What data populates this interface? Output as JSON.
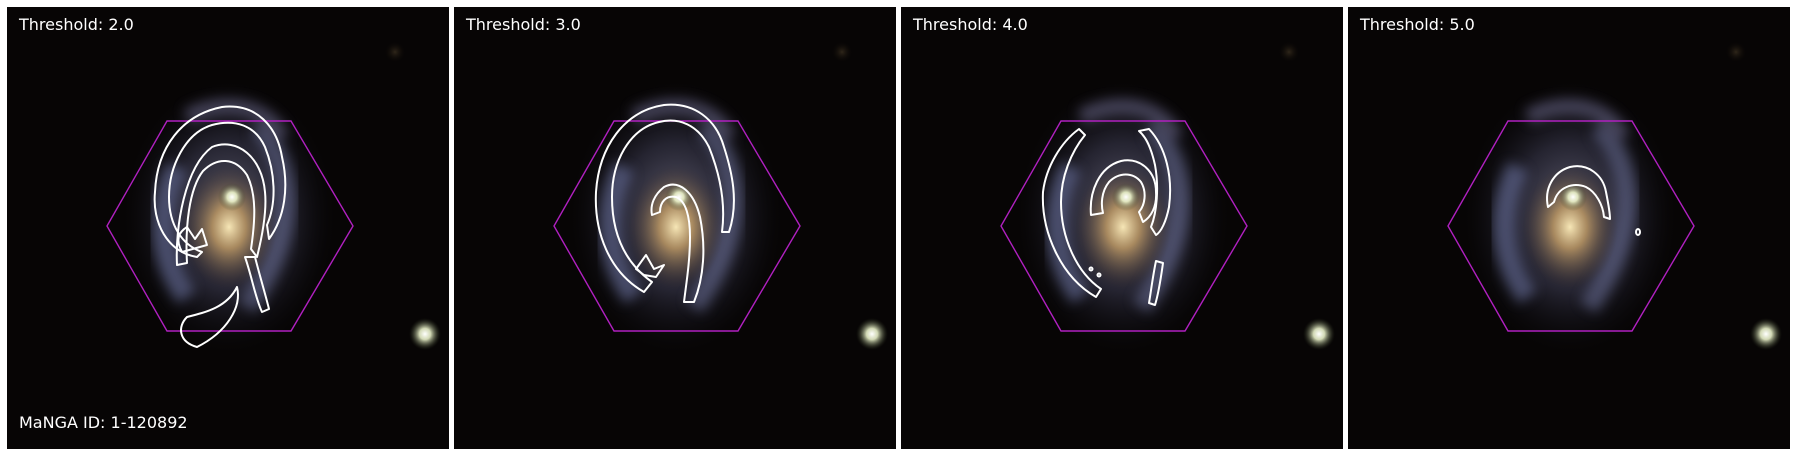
{
  "panels": [
    {
      "threshold": "Threshold: 2.0",
      "id_label": "MaNGA ID: 1-120892"
    },
    {
      "threshold": "Threshold: 3.0",
      "id_label": ""
    },
    {
      "threshold": "Threshold: 4.0",
      "id_label": ""
    },
    {
      "threshold": "Threshold: 5.0",
      "id_label": ""
    }
  ],
  "colors": {
    "background": "#070505",
    "ifu_hexagon": "#b020c0",
    "contour": "#ffffff",
    "divider": "#ffffff"
  }
}
